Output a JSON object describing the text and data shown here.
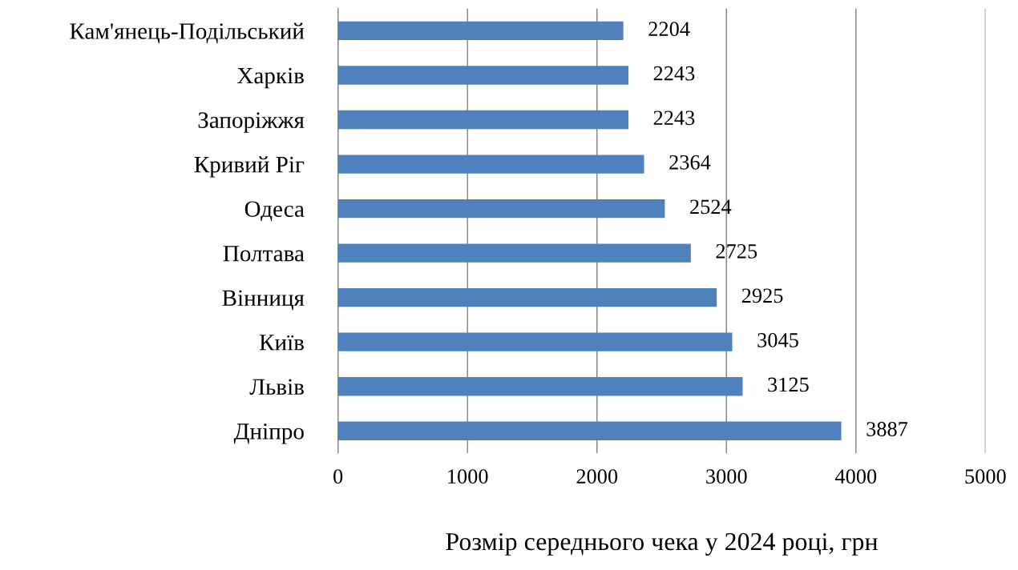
{
  "chart_data": {
    "type": "bar",
    "orientation": "horizontal",
    "xlabel": "Розмір середнього чека у 2024 році, грн",
    "categories": [
      "Кам'янець-Подільський",
      "Харків",
      "Запоріжжя",
      "Кривий Ріг",
      "Одеса",
      "Полтава",
      "Вінниця",
      "Київ",
      "Львів",
      "Дніпро"
    ],
    "values": [
      2204,
      2243,
      2243,
      2364,
      2524,
      2725,
      2925,
      3045,
      3125,
      3887
    ],
    "color": "#4f81bd",
    "xlim": [
      0,
      5000
    ],
    "xticks": [
      0,
      1000,
      2000,
      3000,
      4000,
      5000
    ],
    "grid": "x",
    "data_labels": true,
    "legend": false
  }
}
